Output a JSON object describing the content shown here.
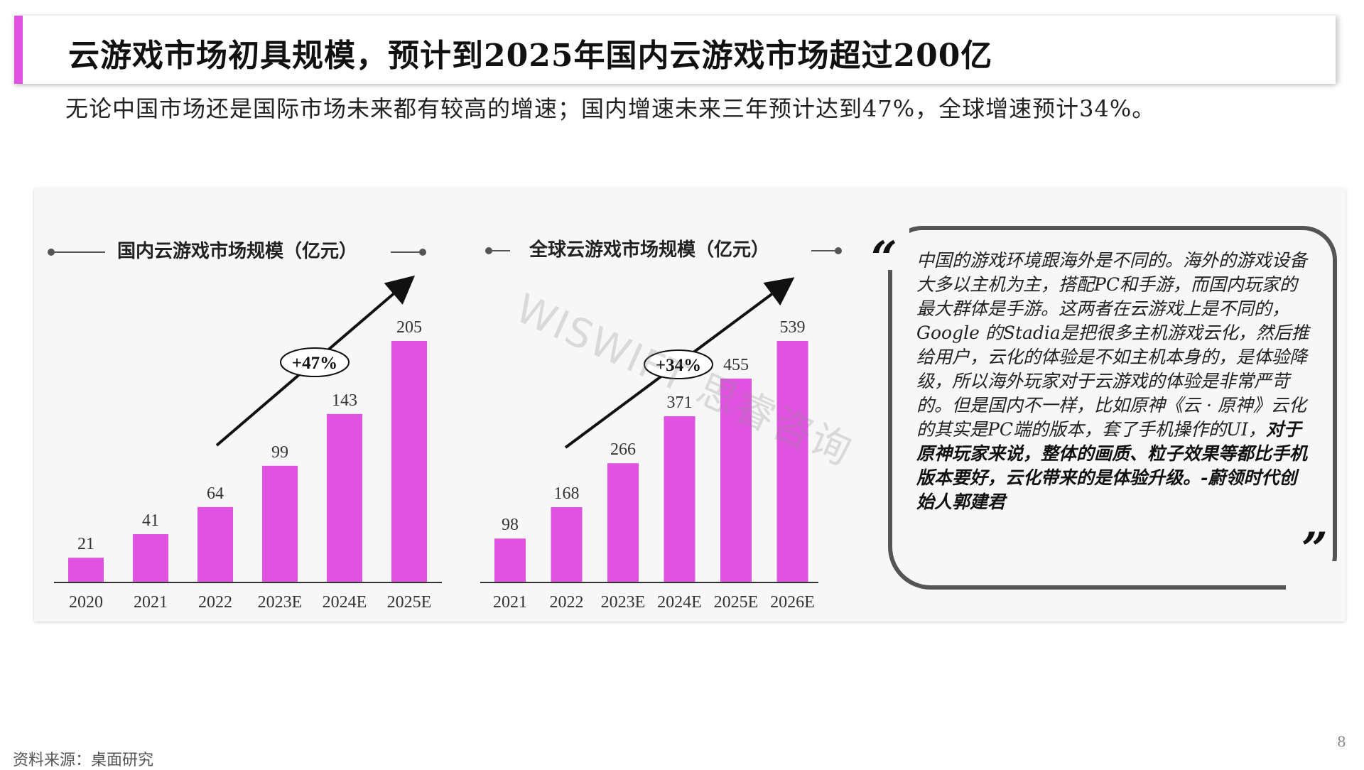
{
  "title": "云游戏市场初具规模，预计到2025年国内云游戏市场超过200亿",
  "subtitle": "无论中国市场还是国际市场未来都有较高的增速；国内增速未来三年预计达到47%，全球增速预计34%。",
  "colors": {
    "accent": "#e052e0",
    "bar": "#e052e0",
    "panel": "#f7f7f7"
  },
  "chart_data": [
    {
      "type": "bar",
      "title": "国内云游戏市场规模（亿元）",
      "categories": [
        "2020",
        "2021",
        "2022",
        "2023E",
        "2024E",
        "2025E"
      ],
      "values": [
        21,
        41,
        64,
        99,
        143,
        205
      ],
      "annotation": "+47%",
      "ylim": [
        0,
        205
      ]
    },
    {
      "type": "bar",
      "title": "全球云游戏市场规模（亿元）",
      "categories": [
        "2021",
        "2022",
        "2023E",
        "2024E",
        "2025E",
        "2026E"
      ],
      "values": [
        98,
        168,
        266,
        371,
        455,
        539
      ],
      "annotation": "+34%",
      "ylim": [
        0,
        539
      ]
    }
  ],
  "quote": {
    "open_mark": "“",
    "close_mark": "”",
    "text_normal": "中国的游戏环境跟海外是不同的。海外的游戏设备大多以主机为主，搭配PC和手游，而国内玩家的最大群体是手游。这两者在云游戏上是不同的，Google 的Stadia是把很多主机游戏云化，然后推给用户，云化的体验是不如主机本身的，是体验降级，所以海外玩家对于云游戏的体验是非常严苛的。但是国内不一样，比如原神《云 · 原神》云化的其实是PC端的版本，套了手机操作的UI，",
    "text_bold": "对于原神玩家来说，整体的画质、粒子效果等都比手机版本要好，云化带来的是体验升级。-蔚领时代创始人郭建君"
  },
  "watermark": "WISWIFT 思睿咨询",
  "source": "资料来源：桌面研究",
  "page_number": "8"
}
